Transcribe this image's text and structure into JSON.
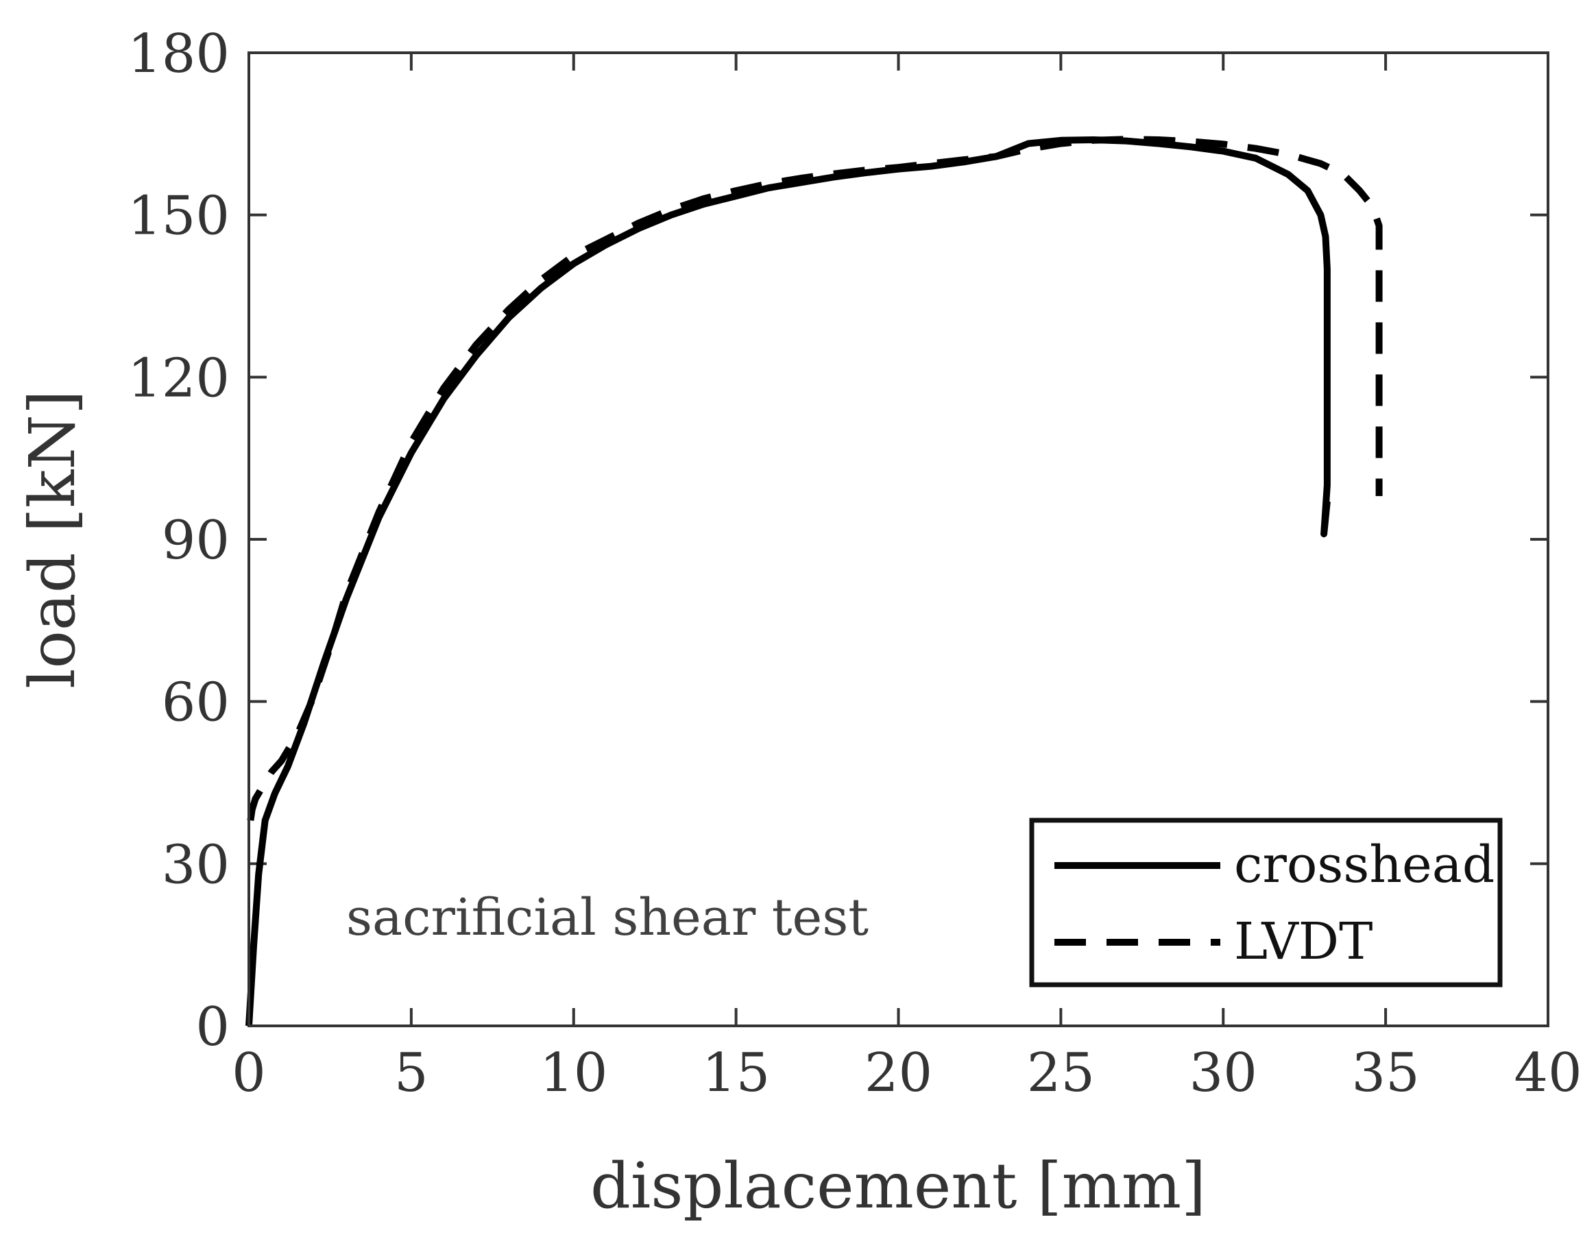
{
  "chart_data": {
    "type": "line",
    "title": "",
    "xlabel": "displacement [mm]",
    "ylabel": "load [kN]",
    "xlim": [
      0,
      40
    ],
    "ylim": [
      0,
      180
    ],
    "xticks": [
      0,
      5,
      10,
      15,
      20,
      25,
      30,
      35,
      40
    ],
    "yticks": [
      0,
      30,
      60,
      90,
      120,
      150,
      180
    ],
    "grid": false,
    "legend_position": "bottom-right",
    "annotation": "sacrificial shear test",
    "colors": {
      "line": "#000000",
      "axis": "#333333"
    },
    "series": [
      {
        "name": "crosshead",
        "style": "solid",
        "x": [
          0,
          0.15,
          0.3,
          0.5,
          0.8,
          1.2,
          1.7,
          2.3,
          3.0,
          4.0,
          5.0,
          6.0,
          7.0,
          8.0,
          9.0,
          10.0,
          11.0,
          12.0,
          13.0,
          14.0,
          15.0,
          16.0,
          17.0,
          18.0,
          19.0,
          20.0,
          21.0,
          22.0,
          23.0,
          23.5,
          24.0,
          25.0,
          26.0,
          27.0,
          28.0,
          29.0,
          30.0,
          31.0,
          32.0,
          32.6,
          33.0,
          33.15,
          33.2,
          33.2,
          33.2,
          33.1,
          33.2
        ],
        "y": [
          0,
          15,
          28,
          38,
          43,
          48,
          56,
          67,
          79,
          94,
          106,
          116,
          124,
          131,
          136.5,
          141,
          144.5,
          147.5,
          150,
          152,
          153.5,
          155,
          156,
          157,
          157.8,
          158.5,
          159,
          159.8,
          160.8,
          162,
          163.2,
          163.8,
          163.9,
          163.7,
          163.2,
          162.6,
          161.8,
          160.5,
          157.5,
          154.5,
          150,
          146,
          140,
          120,
          100,
          91,
          97
        ]
      },
      {
        "name": "LVDT",
        "style": "dashed",
        "x": [
          0.05,
          0.1,
          0.2,
          0.4,
          0.7,
          1.0,
          1.5,
          2.0,
          2.5,
          3.0,
          4.0,
          5.0,
          6.0,
          7.0,
          8.0,
          9.0,
          10.0,
          11.0,
          12.0,
          13.0,
          14.0,
          15.0,
          16.0,
          17.0,
          18.0,
          19.0,
          20.0,
          21.0,
          22.0,
          23.0,
          24.0,
          25.0,
          26.0,
          27.0,
          28.0,
          29.0,
          30.0,
          31.0,
          32.0,
          33.0,
          33.7,
          34.2,
          34.6,
          34.8,
          34.8,
          34.8,
          34.8
        ],
        "y": [
          38,
          40,
          42,
          44,
          47,
          49,
          54,
          61,
          70,
          80,
          95,
          108,
          118,
          126,
          132.5,
          138,
          142.5,
          145.5,
          148.5,
          151,
          153,
          154.5,
          155.8,
          156.8,
          157.6,
          158.3,
          158.8,
          159.5,
          160.2,
          160.8,
          162.2,
          163.2,
          163.8,
          164,
          163.9,
          163.6,
          163.1,
          162.3,
          161.2,
          159.5,
          157.5,
          154.5,
          151.5,
          148,
          140,
          110,
          98
        ]
      }
    ]
  }
}
